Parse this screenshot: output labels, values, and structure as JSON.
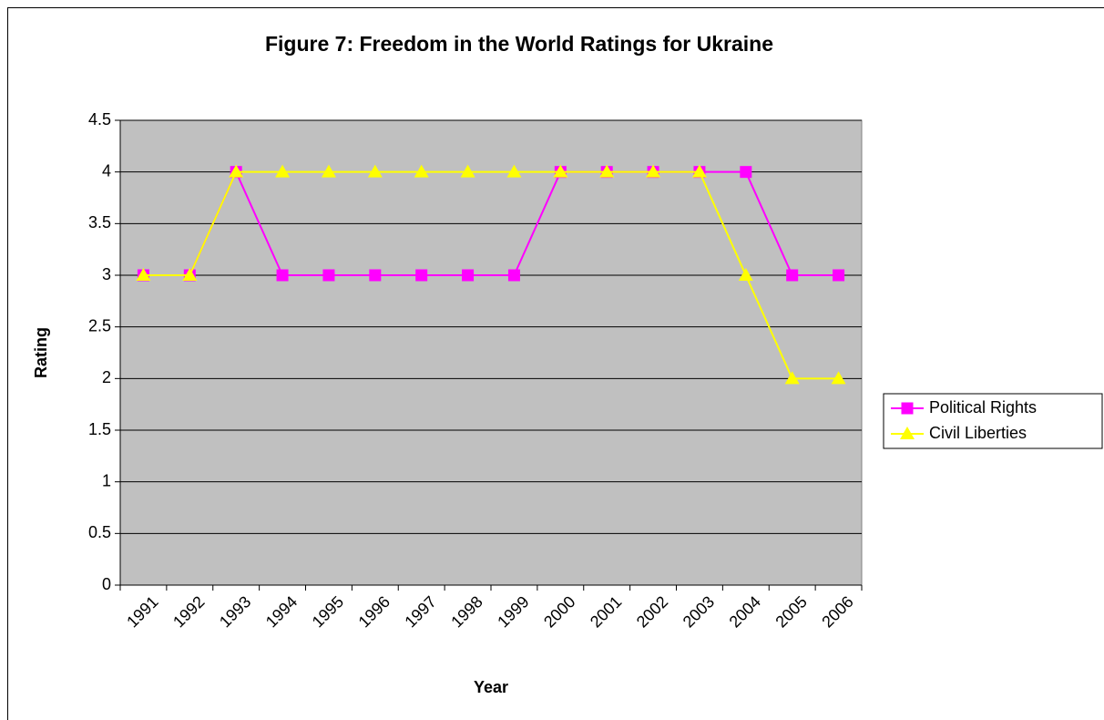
{
  "chart_data": {
    "type": "line",
    "title": "Figure 7: Freedom in the World Ratings for Ukraine",
    "x_label": "Year",
    "y_label": "Rating",
    "categories": [
      "1991",
      "1992",
      "1993",
      "1994",
      "1995",
      "1996",
      "1997",
      "1998",
      "1999",
      "2000",
      "2001",
      "2002",
      "2003",
      "2004",
      "2005",
      "2006"
    ],
    "series": [
      {
        "name": "Political Rights",
        "color": "#ff00ff",
        "marker": "square",
        "values": [
          3,
          3,
          4,
          3,
          3,
          3,
          3,
          3,
          3,
          4,
          4,
          4,
          4,
          4,
          3,
          3
        ]
      },
      {
        "name": "Civil Liberties",
        "color": "#ffff00",
        "marker": "triangle",
        "values": [
          3,
          3,
          4,
          4,
          4,
          4,
          4,
          4,
          4,
          4,
          4,
          4,
          4,
          3,
          2,
          2
        ]
      }
    ],
    "ylim": [
      0,
      4.5
    ],
    "yticks": [
      0,
      0.5,
      1,
      1.5,
      2,
      2.5,
      3,
      3.5,
      4,
      4.5
    ],
    "grid": true,
    "legend": "right",
    "plot_background": "#c0c0c0"
  }
}
